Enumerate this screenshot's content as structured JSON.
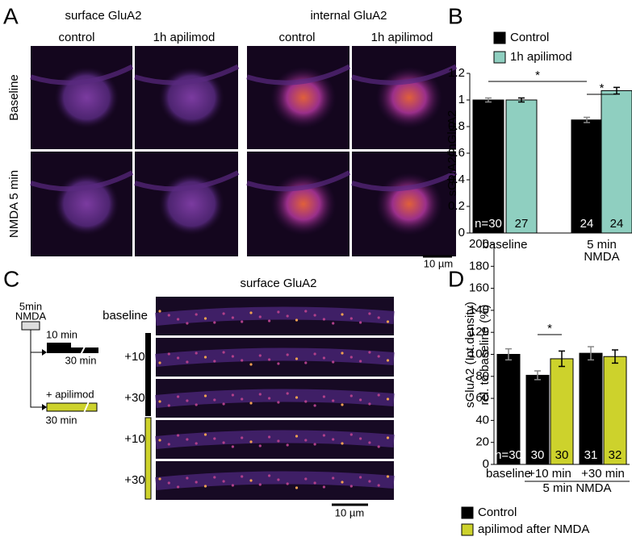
{
  "panel_labels": [
    "A",
    "B",
    "C",
    "D"
  ],
  "panel_a": {
    "column_groups": [
      "surface GluA2",
      "internal GluA2"
    ],
    "columns": [
      "control",
      "1h apilimod",
      "control",
      "1h apilimod"
    ],
    "rows": [
      "Baseline",
      "NMDA 5 min"
    ],
    "scale_bar": "10 µm"
  },
  "panel_c": {
    "title": "surface GluA2",
    "stimulus": [
      "5min",
      "NMDA"
    ],
    "timeline": [
      "10 min",
      "30 min",
      "+ apilimod",
      "30 min"
    ],
    "rows": [
      "baseline",
      "+10’",
      "+30’",
      "+10’",
      "+30’"
    ],
    "scale_bar": "10 µm"
  },
  "chart_data": [
    {
      "type": "bar",
      "ylabel": "sGluA2/inGluA2",
      "categories": [
        "baseline",
        [
          "5 min",
          "NMDA"
        ]
      ],
      "series": [
        {
          "name": "Control",
          "color": "#000000",
          "values": [
            1.0,
            0.85
          ],
          "errors": [
            0.015,
            0.02
          ],
          "n_labels": [
            "n=30",
            "24"
          ]
        },
        {
          "name": "1h apilimod",
          "color": "#8fcfc0",
          "values": [
            1.0,
            1.07
          ],
          "errors": [
            0.015,
            0.025
          ],
          "n_labels": [
            "27",
            "24"
          ]
        }
      ],
      "ylim": [
        0,
        1.2
      ],
      "yticks": [
        0,
        0.2,
        0.4,
        0.6,
        0.8,
        1,
        1.2
      ],
      "annotations": [
        "*",
        "*"
      ]
    },
    {
      "type": "bar",
      "ylabel": [
        "sGluA2 (Int.density)",
        "rel. to baseline (%)"
      ],
      "categories": [
        "baseline",
        "+10 min",
        "+30 min"
      ],
      "group_label": "5 min NMDA",
      "series": [
        {
          "name": "Control",
          "color": "#000000",
          "values": [
            100,
            81,
            101
          ],
          "errors": [
            5,
            4,
            6
          ],
          "n_labels": [
            "n=30",
            "30",
            "31"
          ]
        },
        {
          "name": "apilimod after NMDA",
          "color": "#cdd22c",
          "values": [
            null,
            96,
            98
          ],
          "errors": [
            null,
            7,
            6
          ],
          "n_labels": [
            null,
            "30",
            "32"
          ]
        }
      ],
      "ylim": [
        0,
        200
      ],
      "yticks": [
        0,
        20,
        40,
        60,
        80,
        100,
        120,
        140,
        160,
        180,
        200
      ],
      "annotations": [
        "*"
      ]
    }
  ]
}
